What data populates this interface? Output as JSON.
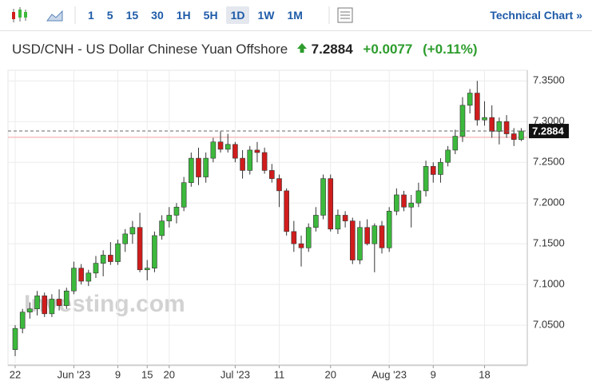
{
  "toolbar": {
    "timeframes": [
      "1",
      "5",
      "15",
      "30",
      "1H",
      "5H",
      "1D",
      "1W",
      "1M"
    ],
    "active": "1D",
    "link": "Technical Chart »"
  },
  "header": {
    "title": "USD/CNH - US Dollar Chinese Yuan Offshore",
    "price": "7.2884",
    "change": "+0.0077",
    "change_pct": "(+0.11%)"
  },
  "chart_data": {
    "type": "candlestick",
    "watermark": "Investing.com",
    "categories": [
      "22",
      null,
      null,
      null,
      null,
      null,
      null,
      null,
      "Jun '23",
      null,
      null,
      null,
      null,
      null,
      "9",
      null,
      null,
      null,
      "15",
      null,
      null,
      "20",
      null,
      null,
      null,
      null,
      null,
      null,
      null,
      null,
      "Jul '23",
      null,
      null,
      null,
      null,
      null,
      "11",
      null,
      null,
      null,
      null,
      null,
      null,
      "20",
      null,
      null,
      null,
      null,
      null,
      null,
      null,
      "Aug '23",
      null,
      null,
      null,
      null,
      null,
      "9",
      null,
      null,
      null,
      null,
      null,
      null,
      "18",
      null,
      null,
      null,
      null,
      null
    ],
    "open": [
      7.02,
      7.046,
      7.066,
      7.07,
      7.086,
      7.064,
      7.082,
      7.074,
      7.092,
      7.12,
      7.104,
      7.114,
      7.126,
      7.136,
      7.128,
      7.15,
      7.162,
      7.17,
      7.118,
      7.12,
      7.16,
      7.178,
      7.185,
      7.195,
      7.225,
      7.255,
      7.232,
      7.255,
      7.275,
      7.266,
      7.272,
      7.255,
      7.24,
      7.265,
      7.262,
      7.24,
      7.23,
      7.215,
      7.165,
      7.15,
      7.145,
      7.17,
      7.185,
      7.23,
      7.168,
      7.185,
      7.178,
      7.13,
      7.17,
      7.15,
      7.172,
      7.145,
      7.19,
      7.21,
      7.195,
      7.2,
      7.215,
      7.245,
      7.235,
      7.25,
      7.265,
      7.282,
      7.32,
      7.335,
      7.302,
      7.305,
      7.288,
      7.3,
      7.285,
      7.278
    ],
    "high": [
      7.05,
      7.07,
      7.078,
      7.092,
      7.09,
      7.088,
      7.094,
      7.096,
      7.128,
      7.125,
      7.118,
      7.135,
      7.142,
      7.152,
      7.155,
      7.168,
      7.178,
      7.188,
      7.13,
      7.165,
      7.185,
      7.195,
      7.2,
      7.232,
      7.262,
      7.268,
      7.262,
      7.28,
      7.288,
      7.285,
      7.275,
      7.265,
      7.27,
      7.275,
      7.268,
      7.248,
      7.235,
      7.218,
      7.178,
      7.16,
      7.175,
      7.195,
      7.235,
      7.235,
      7.192,
      7.19,
      7.182,
      7.178,
      7.18,
      7.175,
      7.178,
      7.195,
      7.218,
      7.215,
      7.21,
      7.225,
      7.252,
      7.25,
      7.255,
      7.27,
      7.29,
      7.33,
      7.34,
      7.35,
      7.325,
      7.32,
      7.305,
      7.308,
      7.292,
      7.292
    ],
    "low": [
      7.012,
      7.04,
      7.058,
      7.062,
      7.06,
      7.06,
      7.068,
      7.07,
      7.088,
      7.1,
      7.098,
      7.108,
      7.11,
      7.124,
      7.124,
      7.14,
      7.15,
      7.115,
      7.105,
      7.115,
      7.155,
      7.17,
      7.175,
      7.19,
      7.22,
      7.222,
      7.225,
      7.25,
      7.262,
      7.262,
      7.25,
      7.23,
      7.235,
      7.25,
      7.236,
      7.225,
      7.195,
      7.16,
      7.14,
      7.122,
      7.14,
      7.165,
      7.18,
      7.165,
      7.162,
      7.17,
      7.125,
      7.125,
      7.148,
      7.115,
      7.138,
      7.14,
      7.185,
      7.19,
      7.17,
      7.195,
      7.208,
      7.225,
      7.225,
      7.245,
      7.26,
      7.275,
      7.31,
      7.295,
      7.295,
      7.28,
      7.272,
      7.28,
      7.27,
      7.276
    ],
    "close": [
      7.046,
      7.066,
      7.07,
      7.086,
      7.064,
      7.082,
      7.074,
      7.092,
      7.12,
      7.104,
      7.114,
      7.126,
      7.136,
      7.128,
      7.15,
      7.162,
      7.17,
      7.118,
      7.12,
      7.16,
      7.178,
      7.185,
      7.195,
      7.225,
      7.255,
      7.232,
      7.255,
      7.275,
      7.266,
      7.272,
      7.255,
      7.24,
      7.265,
      7.262,
      7.24,
      7.23,
      7.215,
      7.165,
      7.15,
      7.145,
      7.17,
      7.185,
      7.23,
      7.168,
      7.185,
      7.178,
      7.13,
      7.17,
      7.15,
      7.172,
      7.145,
      7.19,
      7.21,
      7.195,
      7.2,
      7.215,
      7.245,
      7.235,
      7.25,
      7.265,
      7.282,
      7.32,
      7.335,
      7.302,
      7.305,
      7.288,
      7.3,
      7.285,
      7.278,
      7.2884
    ],
    "up_color": "#3cb93c",
    "down_color": "#d01c1c",
    "last_price": 7.2884,
    "previous_close": 7.2807,
    "ylim": [
      7.003,
      7.363
    ],
    "yticks": [
      {
        "value": 7.05,
        "label": "7.0500"
      },
      {
        "value": 7.1,
        "label": "7.1000"
      },
      {
        "value": 7.15,
        "label": "7.1500"
      },
      {
        "value": 7.2,
        "label": "7.2000"
      },
      {
        "value": 7.25,
        "label": "7.2500"
      },
      {
        "value": 7.3,
        "label": "7.3000"
      },
      {
        "value": 7.35,
        "label": "7.3500"
      }
    ],
    "grid": true
  }
}
